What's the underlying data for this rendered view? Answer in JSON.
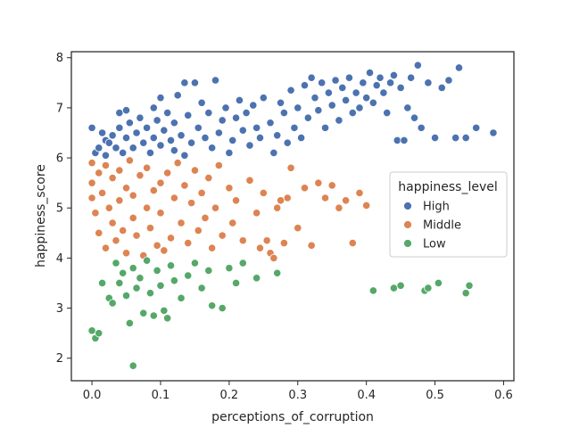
{
  "chart_data": {
    "type": "scatter",
    "title": "",
    "xlabel": "perceptions_of_corruption",
    "ylabel": "happiness_score",
    "xlim": [
      -0.03,
      0.615
    ],
    "ylim": [
      1.55,
      8.12
    ],
    "xticks": [
      "0.0",
      "0.1",
      "0.2",
      "0.3",
      "0.4",
      "0.5",
      "0.6"
    ],
    "yticks": [
      "2",
      "3",
      "4",
      "5",
      "6",
      "7",
      "8"
    ],
    "grid": false,
    "legend": {
      "title": "happiness_level",
      "placement": "center-right"
    },
    "series": [
      {
        "name": "High",
        "color": "#4c72b0",
        "points": [
          [
            0.0,
            6.6
          ],
          [
            0.005,
            6.1
          ],
          [
            0.01,
            6.2
          ],
          [
            0.015,
            6.5
          ],
          [
            0.02,
            6.35
          ],
          [
            0.02,
            6.05
          ],
          [
            0.025,
            6.3
          ],
          [
            0.03,
            6.45
          ],
          [
            0.035,
            6.2
          ],
          [
            0.04,
            6.6
          ],
          [
            0.04,
            6.9
          ],
          [
            0.045,
            6.1
          ],
          [
            0.05,
            6.4
          ],
          [
            0.05,
            6.95
          ],
          [
            0.055,
            6.7
          ],
          [
            0.06,
            6.2
          ],
          [
            0.065,
            6.5
          ],
          [
            0.07,
            6.8
          ],
          [
            0.075,
            6.3
          ],
          [
            0.08,
            6.6
          ],
          [
            0.085,
            6.1
          ],
          [
            0.09,
            7.0
          ],
          [
            0.09,
            6.4
          ],
          [
            0.095,
            6.75
          ],
          [
            0.1,
            6.25
          ],
          [
            0.1,
            7.2
          ],
          [
            0.105,
            6.55
          ],
          [
            0.11,
            6.9
          ],
          [
            0.115,
            6.35
          ],
          [
            0.12,
            6.15
          ],
          [
            0.12,
            6.7
          ],
          [
            0.125,
            7.25
          ],
          [
            0.13,
            6.45
          ],
          [
            0.135,
            6.05
          ],
          [
            0.135,
            7.5
          ],
          [
            0.14,
            6.85
          ],
          [
            0.145,
            6.3
          ],
          [
            0.15,
            7.5
          ],
          [
            0.155,
            6.6
          ],
          [
            0.16,
            7.1
          ],
          [
            0.165,
            6.4
          ],
          [
            0.17,
            6.9
          ],
          [
            0.175,
            6.2
          ],
          [
            0.18,
            7.55
          ],
          [
            0.185,
            6.5
          ],
          [
            0.19,
            6.75
          ],
          [
            0.195,
            7.0
          ],
          [
            0.2,
            6.1
          ],
          [
            0.205,
            6.35
          ],
          [
            0.21,
            6.8
          ],
          [
            0.215,
            7.15
          ],
          [
            0.22,
            6.55
          ],
          [
            0.225,
            6.9
          ],
          [
            0.23,
            6.25
          ],
          [
            0.235,
            7.05
          ],
          [
            0.24,
            6.6
          ],
          [
            0.245,
            6.4
          ],
          [
            0.25,
            7.2
          ],
          [
            0.26,
            6.7
          ],
          [
            0.265,
            6.1
          ],
          [
            0.27,
            6.45
          ],
          [
            0.275,
            7.1
          ],
          [
            0.28,
            6.9
          ],
          [
            0.285,
            6.3
          ],
          [
            0.29,
            7.35
          ],
          [
            0.295,
            6.6
          ],
          [
            0.3,
            7.0
          ],
          [
            0.305,
            6.4
          ],
          [
            0.31,
            7.45
          ],
          [
            0.315,
            6.8
          ],
          [
            0.32,
            7.6
          ],
          [
            0.325,
            7.2
          ],
          [
            0.33,
            6.95
          ],
          [
            0.335,
            7.5
          ],
          [
            0.34,
            6.6
          ],
          [
            0.345,
            7.3
          ],
          [
            0.35,
            7.05
          ],
          [
            0.355,
            7.55
          ],
          [
            0.36,
            6.75
          ],
          [
            0.365,
            7.4
          ],
          [
            0.37,
            7.15
          ],
          [
            0.375,
            7.6
          ],
          [
            0.38,
            6.9
          ],
          [
            0.385,
            7.3
          ],
          [
            0.39,
            7.0
          ],
          [
            0.395,
            7.5
          ],
          [
            0.4,
            7.2
          ],
          [
            0.405,
            7.7
          ],
          [
            0.41,
            7.1
          ],
          [
            0.415,
            7.45
          ],
          [
            0.42,
            7.6
          ],
          [
            0.425,
            7.3
          ],
          [
            0.43,
            6.9
          ],
          [
            0.435,
            7.5
          ],
          [
            0.44,
            7.65
          ],
          [
            0.445,
            6.35
          ],
          [
            0.45,
            7.4
          ],
          [
            0.455,
            6.35
          ],
          [
            0.46,
            7.0
          ],
          [
            0.465,
            7.6
          ],
          [
            0.47,
            6.8
          ],
          [
            0.475,
            7.85
          ],
          [
            0.48,
            6.6
          ],
          [
            0.49,
            7.5
          ],
          [
            0.5,
            6.4
          ],
          [
            0.51,
            7.4
          ],
          [
            0.52,
            7.55
          ],
          [
            0.53,
            6.4
          ],
          [
            0.535,
            7.8
          ],
          [
            0.545,
            6.4
          ],
          [
            0.56,
            6.6
          ],
          [
            0.585,
            6.5
          ]
        ]
      },
      {
        "name": "Middle",
        "color": "#dd8452",
        "points": [
          [
            0.0,
            5.9
          ],
          [
            0.0,
            5.5
          ],
          [
            0.0,
            5.2
          ],
          [
            0.005,
            4.9
          ],
          [
            0.01,
            5.7
          ],
          [
            0.01,
            4.5
          ],
          [
            0.015,
            5.3
          ],
          [
            0.02,
            4.2
          ],
          [
            0.02,
            5.85
          ],
          [
            0.025,
            5.0
          ],
          [
            0.03,
            4.7
          ],
          [
            0.03,
            5.6
          ],
          [
            0.035,
            4.35
          ],
          [
            0.04,
            5.15
          ],
          [
            0.04,
            5.75
          ],
          [
            0.045,
            4.55
          ],
          [
            0.05,
            5.4
          ],
          [
            0.05,
            4.1
          ],
          [
            0.055,
            5.95
          ],
          [
            0.06,
            4.8
          ],
          [
            0.06,
            5.25
          ],
          [
            0.065,
            4.45
          ],
          [
            0.07,
            5.65
          ],
          [
            0.075,
            4.05
          ],
          [
            0.08,
            5.0
          ],
          [
            0.08,
            5.8
          ],
          [
            0.085,
            4.6
          ],
          [
            0.09,
            5.35
          ],
          [
            0.095,
            4.25
          ],
          [
            0.1,
            5.5
          ],
          [
            0.1,
            4.9
          ],
          [
            0.105,
            4.15
          ],
          [
            0.11,
            5.7
          ],
          [
            0.115,
            4.4
          ],
          [
            0.12,
            5.2
          ],
          [
            0.125,
            5.9
          ],
          [
            0.13,
            4.7
          ],
          [
            0.135,
            5.45
          ],
          [
            0.14,
            4.3
          ],
          [
            0.145,
            5.1
          ],
          [
            0.15,
            5.75
          ],
          [
            0.155,
            4.55
          ],
          [
            0.16,
            5.3
          ],
          [
            0.165,
            4.8
          ],
          [
            0.17,
            5.6
          ],
          [
            0.175,
            4.2
          ],
          [
            0.18,
            5.0
          ],
          [
            0.185,
            5.85
          ],
          [
            0.19,
            4.45
          ],
          [
            0.2,
            5.4
          ],
          [
            0.205,
            4.7
          ],
          [
            0.21,
            5.15
          ],
          [
            0.22,
            4.35
          ],
          [
            0.23,
            5.55
          ],
          [
            0.24,
            4.9
          ],
          [
            0.25,
            5.3
          ],
          [
            0.26,
            4.1
          ],
          [
            0.27,
            5.0
          ],
          [
            0.28,
            4.3
          ],
          [
            0.29,
            5.8
          ],
          [
            0.3,
            4.6
          ],
          [
            0.31,
            5.4
          ],
          [
            0.32,
            4.25
          ],
          [
            0.33,
            5.5
          ],
          [
            0.34,
            5.2
          ],
          [
            0.35,
            5.45
          ],
          [
            0.36,
            5.0
          ],
          [
            0.37,
            5.15
          ],
          [
            0.38,
            4.3
          ],
          [
            0.39,
            5.3
          ],
          [
            0.4,
            5.05
          ],
          [
            0.285,
            5.2
          ],
          [
            0.275,
            5.15
          ],
          [
            0.265,
            4.0
          ],
          [
            0.255,
            4.35
          ],
          [
            0.245,
            4.2
          ]
        ]
      },
      {
        "name": "Low",
        "color": "#55a868",
        "points": [
          [
            0.0,
            2.55
          ],
          [
            0.005,
            2.4
          ],
          [
            0.01,
            2.5
          ],
          [
            0.015,
            3.5
          ],
          [
            0.025,
            3.2
          ],
          [
            0.03,
            3.1
          ],
          [
            0.035,
            3.9
          ],
          [
            0.04,
            3.5
          ],
          [
            0.045,
            3.7
          ],
          [
            0.05,
            3.25
          ],
          [
            0.055,
            2.7
          ],
          [
            0.06,
            1.85
          ],
          [
            0.06,
            3.8
          ],
          [
            0.065,
            3.4
          ],
          [
            0.07,
            3.6
          ],
          [
            0.075,
            2.9
          ],
          [
            0.08,
            3.95
          ],
          [
            0.085,
            3.3
          ],
          [
            0.09,
            2.85
          ],
          [
            0.095,
            3.75
          ],
          [
            0.1,
            3.45
          ],
          [
            0.105,
            2.95
          ],
          [
            0.11,
            2.8
          ],
          [
            0.115,
            3.85
          ],
          [
            0.12,
            3.55
          ],
          [
            0.13,
            3.2
          ],
          [
            0.14,
            3.65
          ],
          [
            0.15,
            3.9
          ],
          [
            0.16,
            3.4
          ],
          [
            0.17,
            3.75
          ],
          [
            0.175,
            3.05
          ],
          [
            0.19,
            3.0
          ],
          [
            0.2,
            3.8
          ],
          [
            0.21,
            3.5
          ],
          [
            0.22,
            3.9
          ],
          [
            0.24,
            3.6
          ],
          [
            0.27,
            3.7
          ],
          [
            0.41,
            3.35
          ],
          [
            0.44,
            3.4
          ],
          [
            0.45,
            3.45
          ],
          [
            0.485,
            3.35
          ],
          [
            0.49,
            3.4
          ],
          [
            0.505,
            3.5
          ],
          [
            0.545,
            3.3
          ],
          [
            0.55,
            3.45
          ]
        ]
      }
    ]
  }
}
